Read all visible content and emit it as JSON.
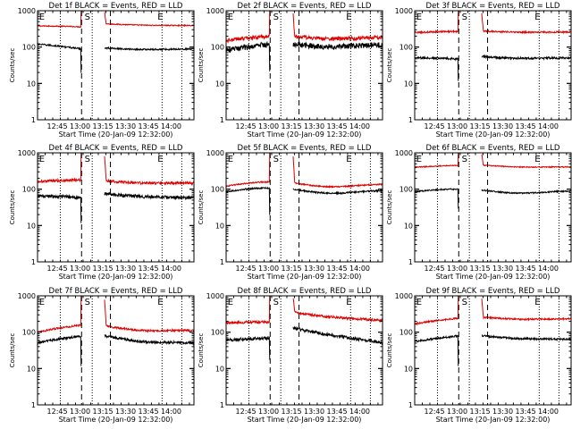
{
  "chart_data": {
    "type": "line",
    "common": {
      "xlabel": "Start Time (20-Jan-09 12:32:00)",
      "ylabel": "Counts/sec",
      "yscale": "log",
      "ylim": [
        1,
        1000
      ],
      "yticks": [
        1,
        10,
        100,
        1000
      ],
      "ytick_labels": [
        "1",
        "10",
        "100",
        "1000"
      ],
      "xlim_min_after_start": [
        0,
        103
      ],
      "xticks_min_after_start": [
        13,
        28,
        43,
        58,
        73,
        88
      ],
      "xtick_labels": [
        "12:45",
        "13:00",
        "13:15",
        "13:30",
        "13:45",
        "14:00"
      ],
      "dotted_lines_min_after_start": [
        15,
        36,
        82,
        95
      ],
      "dashed_lines_min_after_start": [
        29,
        48
      ],
      "gap_min_after_start": [
        29,
        44
      ],
      "markers": [
        {
          "label": "E",
          "x": 1
        },
        {
          "label": "S",
          "x": 31
        },
        {
          "label": "E",
          "x": 79
        }
      ],
      "series_colors": {
        "events": "#000000",
        "lld": "#e00000"
      },
      "grid": false,
      "legend": "none"
    },
    "panels": [
      {
        "title": "Det 1f BLACK = Events, RED = LLD",
        "events": {
          "pre": 120,
          "end_pre": 85,
          "post": 95,
          "end_post": 85,
          "dip": 20,
          "noise": 0.05,
          "bump": 0.05
        },
        "lld": {
          "pre": 380,
          "end_pre": 350,
          "post": 440,
          "end_post": 380,
          "peak": 1000,
          "noise": 0.03,
          "bump": 0.03
        }
      },
      {
        "title": "Det 2f BLACK = Events, RED = LLD",
        "events": {
          "pre": 80,
          "end_pre": 110,
          "post": 120,
          "end_post": 105,
          "dip": 22,
          "noise": 0.18,
          "bump": 0.1
        },
        "lld": {
          "pre": 150,
          "end_pre": 180,
          "post": 200,
          "end_post": 170,
          "peak": 1000,
          "noise": 0.12,
          "bump": 0.1
        }
      },
      {
        "title": "Det 3f BLACK = Events, RED = LLD",
        "events": {
          "pre": 50,
          "end_pre": 45,
          "post": 55,
          "end_post": 48,
          "dip": 12,
          "noise": 0.07,
          "bump": 0.05
        },
        "lld": {
          "pre": 250,
          "end_pre": 260,
          "post": 280,
          "end_post": 250,
          "peak": 1000,
          "noise": 0.05,
          "bump": 0.04
        }
      },
      {
        "title": "Det 4f BLACK = Events, RED = LLD",
        "events": {
          "pre": 65,
          "end_pre": 55,
          "post": 75,
          "end_post": 55,
          "dip": 12,
          "noise": 0.1,
          "bump": 0.05
        },
        "lld": {
          "pre": 160,
          "end_pre": 170,
          "post": 170,
          "end_post": 140,
          "peak": 1000,
          "noise": 0.08,
          "bump": 0.06
        }
      },
      {
        "title": "Det 5f BLACK = Events, RED = LLD",
        "events": {
          "pre": 85,
          "end_pre": 95,
          "post": 100,
          "end_post": 80,
          "dip": 20,
          "noise": 0.05,
          "bump": 0.15
        },
        "lld": {
          "pre": 120,
          "end_pre": 140,
          "post": 150,
          "end_post": 120,
          "peak": 1000,
          "noise": 0.04,
          "bump": 0.15
        }
      },
      {
        "title": "Det 6f BLACK = Events, RED = LLD",
        "events": {
          "pre": 85,
          "end_pre": 90,
          "post": 95,
          "end_post": 80,
          "dip": 30,
          "noise": 0.04,
          "bump": 0.12
        },
        "lld": {
          "pre": 400,
          "end_pre": 430,
          "post": 460,
          "end_post": 390,
          "peak": 1000,
          "noise": 0.03,
          "bump": 0.05
        }
      },
      {
        "title": "Det 7f BLACK = Events, RED = LLD",
        "events": {
          "pre": 50,
          "end_pre": 70,
          "post": 80,
          "end_post": 45,
          "dip": 12,
          "noise": 0.08,
          "bump": 0.12
        },
        "lld": {
          "pre": 100,
          "end_pre": 140,
          "post": 150,
          "end_post": 100,
          "peak": 1000,
          "noise": 0.06,
          "bump": 0.12
        }
      },
      {
        "title": "Det 8f BLACK = Events, RED = LLD",
        "events": {
          "pre": 60,
          "end_pre": 65,
          "post": 130,
          "end_post": 50,
          "dip": 18,
          "noise": 0.1,
          "bump": 0.05
        },
        "lld": {
          "pre": 180,
          "end_pre": 180,
          "post": 350,
          "end_post": 200,
          "peak": 1000,
          "noise": 0.08,
          "bump": 0.05
        }
      },
      {
        "title": "Det 9f BLACK = Events, RED = LLD",
        "events": {
          "pre": 55,
          "end_pre": 75,
          "post": 80,
          "end_post": 60,
          "dip": 12,
          "noise": 0.06,
          "bump": 0.06
        },
        "lld": {
          "pre": 170,
          "end_pre": 230,
          "post": 260,
          "end_post": 220,
          "peak": 1000,
          "noise": 0.05,
          "bump": 0.06
        }
      }
    ]
  }
}
